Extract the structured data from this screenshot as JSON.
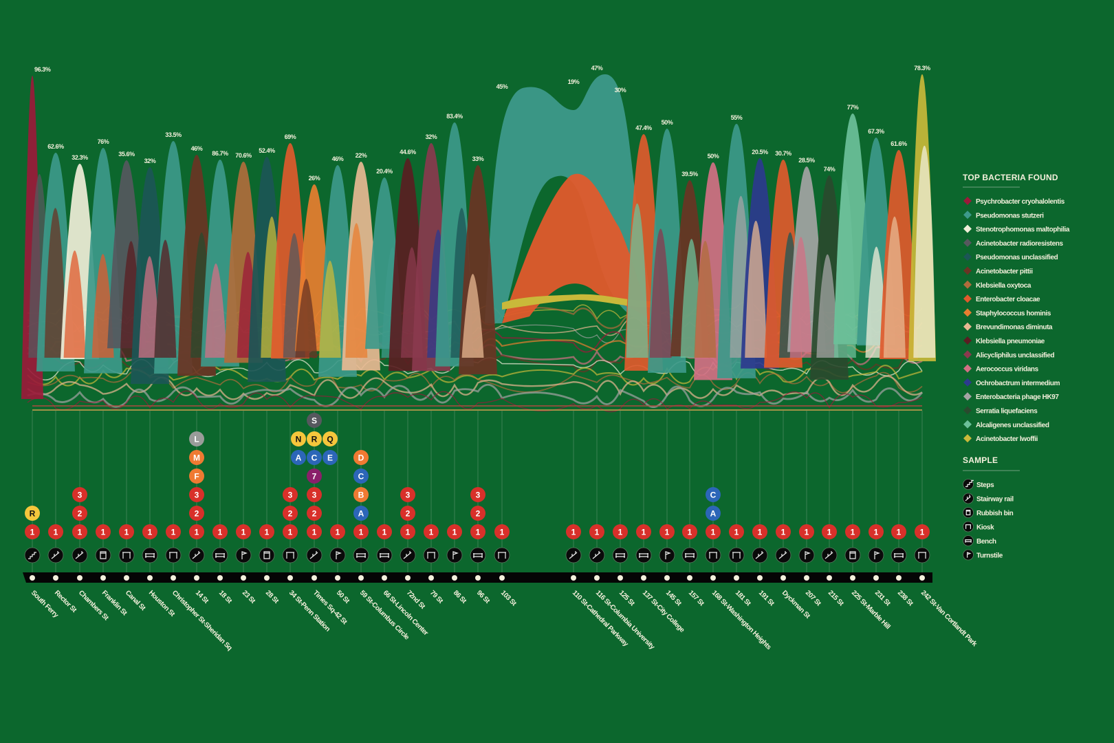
{
  "chart_data": {
    "type": "area",
    "legend_title": "TOP BACTERIA FOUND",
    "legend_placement": "right",
    "bacteria": [
      {
        "name": "Psychrobacter cryohalolentis",
        "color": "#9b1a3a"
      },
      {
        "name": "Pseudomonas stutzeri",
        "color": "#3d998a"
      },
      {
        "name": "Stenotrophomonas maltophilia",
        "color": "#f0eed8"
      },
      {
        "name": "Acinetobacter radioresistens",
        "color": "#56585e"
      },
      {
        "name": "Pseudomonas unclassified",
        "color": "#1c5656"
      },
      {
        "name": "Acinetobacter pittii",
        "color": "#6a3424"
      },
      {
        "name": "Klebsiella oxytoca",
        "color": "#b06c3c"
      },
      {
        "name": "Enterobacter cloacae",
        "color": "#e05a2c"
      },
      {
        "name": "Staphylococcus hominis",
        "color": "#e87e30"
      },
      {
        "name": "Brevundimonas diminuta",
        "color": "#e8b892"
      },
      {
        "name": "Klebsiella pneumoniae",
        "color": "#5a1e22"
      },
      {
        "name": "Alicycliphilus unclassified",
        "color": "#8a3a4e"
      },
      {
        "name": "Aerococcus viridans",
        "color": "#d27084"
      },
      {
        "name": "Ochrobactrum intermedium",
        "color": "#2c3a8e"
      },
      {
        "name": "Enterobacteria phage HK97",
        "color": "#a4a4a4"
      },
      {
        "name": "Serratia liquefaciens",
        "color": "#2a4a2e"
      },
      {
        "name": "Alcaligenes unclassified",
        "color": "#6cc09a"
      },
      {
        "name": "Acinetobacter lwoffii",
        "color": "#c9b93a"
      }
    ],
    "sample_title": "SAMPLE",
    "sample_types": [
      {
        "key": "steps",
        "label": "Steps"
      },
      {
        "key": "rail",
        "label": "Stairway rail"
      },
      {
        "key": "bin",
        "label": "Rubbish bin"
      },
      {
        "key": "kiosk",
        "label": "Kiosk"
      },
      {
        "key": "bench",
        "label": "Bench"
      },
      {
        "key": "turnstile",
        "label": "Turnstile"
      }
    ],
    "line_colors": {
      "1": "#d8302a",
      "2": "#d8302a",
      "3": "#d8302a",
      "R": "#f5c63c",
      "N": "#f5c63c",
      "Q": "#f5c63c",
      "A": "#2c66b8",
      "C": "#2c66b8",
      "E": "#2c66b8",
      "B": "#ef7a32",
      "D": "#ef7a32",
      "F": "#ef7a32",
      "M": "#ef7a32",
      "L": "#9a9c9a",
      "S": "#56585e",
      "7": "#8a1f6a"
    },
    "stations": [
      {
        "name": "South Ferry",
        "top_pct": "96.3%",
        "top": 0,
        "sample": "steps",
        "lines": [
          [
            "1"
          ],
          [
            "R"
          ]
        ]
      },
      {
        "name": "Rector St",
        "top_pct": "62.6%",
        "top": 1,
        "sample": "rail",
        "lines": [
          [
            "1"
          ]
        ]
      },
      {
        "name": "Chambers St",
        "top_pct": "32.3%",
        "top": 2,
        "sample": "rail",
        "lines": [
          [
            "1"
          ],
          [
            "2"
          ],
          [
            "3"
          ]
        ]
      },
      {
        "name": "Franklin St",
        "top_pct": "76%",
        "top": 1,
        "sample": "bin",
        "lines": [
          [
            "1"
          ]
        ]
      },
      {
        "name": "Canal St",
        "top_pct": "35.6%",
        "top": 3,
        "sample": "kiosk",
        "lines": [
          [
            "1"
          ]
        ]
      },
      {
        "name": "Houston St",
        "top_pct": "32%",
        "top": 4,
        "sample": "bench",
        "lines": [
          [
            "1"
          ]
        ]
      },
      {
        "name": "Christopher St-Sheridan Sq",
        "top_pct": "33.5%",
        "top": 1,
        "sample": "kiosk",
        "lines": [
          [
            "1"
          ]
        ]
      },
      {
        "name": "14 St",
        "top_pct": "46%",
        "top": 5,
        "sample": "rail",
        "lines": [
          [
            "1"
          ],
          [
            "2"
          ],
          [
            "3"
          ],
          [
            "F"
          ],
          [
            "M"
          ],
          [
            "L"
          ]
        ]
      },
      {
        "name": "18 St",
        "top_pct": "86.7%",
        "top": 1,
        "sample": "bench",
        "lines": [
          [
            "1"
          ]
        ]
      },
      {
        "name": "23 St",
        "top_pct": "70.6%",
        "top": 6,
        "sample": "turnstile",
        "lines": [
          [
            "1"
          ]
        ]
      },
      {
        "name": "28 St",
        "top_pct": "52.4%",
        "top": 4,
        "sample": "bin",
        "lines": [
          [
            "1"
          ]
        ]
      },
      {
        "name": "34 St-Penn Station",
        "top_pct": "69%",
        "top": 7,
        "sample": "kiosk",
        "lines": [
          [
            "1"
          ],
          [
            "2"
          ],
          [
            "3"
          ]
        ]
      },
      {
        "name": "Times Sq-42 St",
        "top_pct": "26%",
        "top": 8,
        "sample": "rail",
        "lines": [
          [
            "1"
          ],
          [
            "2"
          ],
          [
            "3"
          ],
          [
            "7"
          ],
          [
            "A",
            "C",
            "E"
          ],
          [
            "N",
            "R",
            "Q"
          ],
          [
            "S"
          ]
        ]
      },
      {
        "name": "50 St",
        "top_pct": "46%",
        "top": 1,
        "sample": "turnstile",
        "lines": [
          [
            "1"
          ]
        ]
      },
      {
        "name": "59 St-Columbus Circle",
        "top_pct": "22%",
        "top": 9,
        "sample": "bench",
        "lines": [
          [
            "1"
          ],
          [
            "A"
          ],
          [
            "B"
          ],
          [
            "C"
          ],
          [
            "D"
          ]
        ]
      },
      {
        "name": "66 St-Lincoln Center",
        "top_pct": "20.4%",
        "top": 1,
        "sample": "bench",
        "lines": [
          [
            "1"
          ]
        ]
      },
      {
        "name": "72nd St",
        "top_pct": "44.6%",
        "top": 10,
        "sample": "rail",
        "lines": [
          [
            "1"
          ],
          [
            "2"
          ],
          [
            "3"
          ]
        ]
      },
      {
        "name": "79 St",
        "top_pct": "32%",
        "top": 11,
        "sample": "kiosk",
        "lines": [
          [
            "1"
          ]
        ]
      },
      {
        "name": "86 St",
        "top_pct": "83.4%",
        "top": 1,
        "sample": "turnstile",
        "lines": [
          [
            "1"
          ]
        ]
      },
      {
        "name": "96 St",
        "top_pct": "33%",
        "top": 5,
        "sample": "bench",
        "lines": [
          [
            "1"
          ],
          [
            "2"
          ],
          [
            "3"
          ]
        ]
      },
      {
        "name": "103 St",
        "top_pct": "45%",
        "top": 1,
        "sample": "kiosk",
        "lines": [
          [
            "1"
          ]
        ]
      },
      {
        "name": "110 St-Cathedral Parkway",
        "top_pct": "19%",
        "top": 1,
        "sample": "rail",
        "lines": [
          [
            "1"
          ]
        ]
      },
      {
        "name": "116 St-Columbia University",
        "top_pct": "47%",
        "top": 1,
        "sample": "rail",
        "lines": [
          [
            "1"
          ]
        ]
      },
      {
        "name": "125 St",
        "top_pct": "30%",
        "top": 1,
        "sample": "bench",
        "lines": [
          [
            "1"
          ]
        ]
      },
      {
        "name": "137 St-City College",
        "top_pct": "47.4%",
        "top": 7,
        "sample": "bench",
        "lines": [
          [
            "1"
          ]
        ]
      },
      {
        "name": "145 St",
        "top_pct": "50%",
        "top": 1,
        "sample": "turnstile",
        "lines": [
          [
            "1"
          ]
        ]
      },
      {
        "name": "157 St",
        "top_pct": "39.5%",
        "top": 5,
        "sample": "bench",
        "lines": [
          [
            "1"
          ]
        ]
      },
      {
        "name": "168 St-Washington Heights",
        "top_pct": "50%",
        "top": 12,
        "sample": "kiosk",
        "lines": [
          [
            "1"
          ],
          [
            "A"
          ],
          [
            "C"
          ]
        ]
      },
      {
        "name": "181 St",
        "top_pct": "55%",
        "top": 1,
        "sample": "kiosk",
        "lines": [
          [
            "1"
          ]
        ]
      },
      {
        "name": "191 St",
        "top_pct": "20.5%",
        "top": 13,
        "sample": "rail",
        "lines": [
          [
            "1"
          ]
        ]
      },
      {
        "name": "Dyckman St",
        "top_pct": "30.7%",
        "top": 7,
        "sample": "rail",
        "lines": [
          [
            "1"
          ]
        ]
      },
      {
        "name": "207 St",
        "top_pct": "28.5%",
        "top": 14,
        "sample": "turnstile",
        "lines": [
          [
            "1"
          ]
        ]
      },
      {
        "name": "215 St",
        "top_pct": "74%",
        "top": 15,
        "sample": "rail",
        "lines": [
          [
            "1"
          ]
        ]
      },
      {
        "name": "225 St-Marble Hill",
        "top_pct": "77%",
        "top": 16,
        "sample": "bin",
        "lines": [
          [
            "1"
          ]
        ]
      },
      {
        "name": "231 St",
        "top_pct": "67.3%",
        "top": 1,
        "sample": "turnstile",
        "lines": [
          [
            "1"
          ]
        ]
      },
      {
        "name": "238 St",
        "top_pct": "61.6%",
        "top": 7,
        "sample": "bench",
        "lines": [
          [
            "1"
          ]
        ]
      },
      {
        "name": "242 St-Van Cortlandt Park",
        "top_pct": "78.3%",
        "top": 17,
        "sample": "kiosk",
        "lines": [
          [
            "1"
          ]
        ]
      }
    ]
  }
}
